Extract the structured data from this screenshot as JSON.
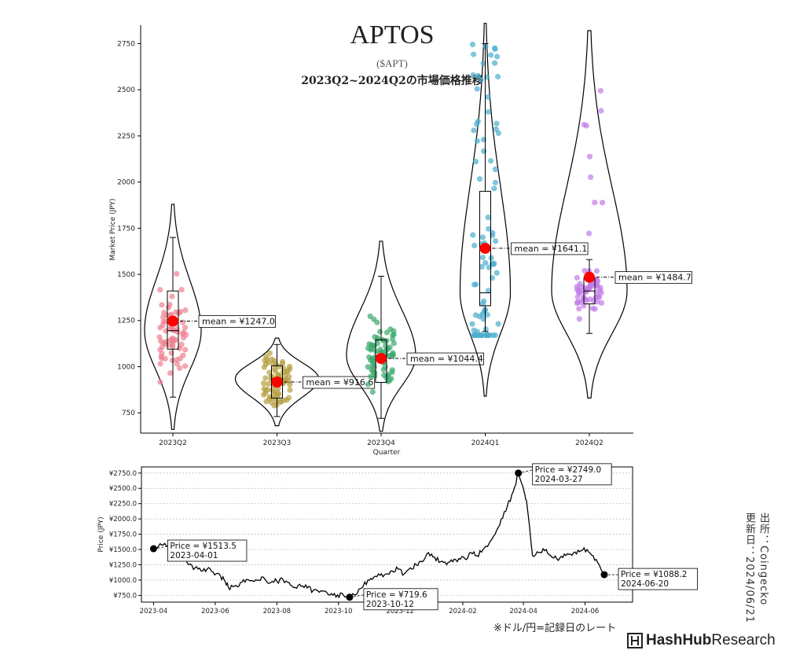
{
  "colors": {
    "violin_points": [
      "#f08090",
      "#b5a040",
      "#3aaa6e",
      "#4aaecf",
      "#c27be8"
    ],
    "mean_marker": "#ff0000",
    "line": "#000000"
  },
  "chart_data": [
    {
      "type": "violin",
      "title": "APTOS",
      "subtitle": "($APT)",
      "subtitle2": "2023Q2~2024Q2の市場価格推移",
      "xlabel": "Quarter",
      "ylabel": "Market Price (JPY)",
      "ylim": [
        640,
        2850
      ],
      "yticks": [
        750,
        1000,
        1250,
        1500,
        1750,
        2000,
        2250,
        2500,
        2750
      ],
      "categories": [
        "2023Q2",
        "2023Q3",
        "2023Q4",
        "2024Q1",
        "2024Q2"
      ],
      "violins": [
        {
          "category": "2023Q2",
          "min": 660,
          "max": 1880,
          "q1": 1095,
          "median": 1195,
          "q3": 1410,
          "whisker_low": 835,
          "whisker_high": 1700,
          "mean": 1247.0,
          "mean_label": "mean = ¥1247.0"
        },
        {
          "category": "2023Q3",
          "min": 680,
          "max": 1155,
          "q1": 830,
          "median": 935,
          "q3": 1005,
          "whisker_low": 730,
          "whisker_high": 1120,
          "mean": 916.6,
          "mean_label": "mean = ¥916.6"
        },
        {
          "category": "2023Q4",
          "min": 650,
          "max": 1680,
          "q1": 915,
          "median": 1060,
          "q3": 1145,
          "whisker_low": 720,
          "whisker_high": 1490,
          "mean": 1044.4,
          "mean_label": "mean = ¥1044.4"
        },
        {
          "category": "2024Q1",
          "min": 840,
          "max": 2860,
          "q1": 1330,
          "median": 1400,
          "q3": 1950,
          "whisker_low": 1190,
          "whisker_high": 2750,
          "mean": 1641.1,
          "mean_label": "mean = ¥1641.1"
        },
        {
          "category": "2024Q2",
          "min": 830,
          "max": 2820,
          "q1": 1340,
          "median": 1410,
          "q3": 1480,
          "whisker_low": 1180,
          "whisker_high": 1580,
          "mean": 1484.7,
          "mean_label": "mean = ¥1484.7"
        }
      ]
    },
    {
      "type": "line",
      "xlabel": "",
      "ylabel": "Price (JPY)",
      "ylim": [
        640,
        2850
      ],
      "yticks": [
        750,
        1000,
        1250,
        1500,
        1750,
        2000,
        2250,
        2500,
        2750
      ],
      "ytick_labels": [
        "¥750.0",
        "¥1000.0",
        "¥1250.0",
        "¥1500.0",
        "¥1750.0",
        "¥2000.0",
        "¥2250.0",
        "¥2500.0",
        "¥2750.0"
      ],
      "xlim": [
        "2023-03-20",
        "2024-07-18"
      ],
      "xticks": [
        "2023-04",
        "2023-06",
        "2023-08",
        "2023-10",
        "2023-12",
        "2024-02",
        "2024-04",
        "2024-06"
      ],
      "grid": "horizontal",
      "series": [
        {
          "x": [
            "2023-04-01",
            "2023-04-06",
            "2023-04-12",
            "2023-04-18",
            "2023-04-24",
            "2023-04-30",
            "2023-05-06",
            "2023-05-12",
            "2023-05-18",
            "2023-05-24",
            "2023-05-30",
            "2023-06-05",
            "2023-06-10",
            "2023-06-14",
            "2023-06-20",
            "2023-06-26",
            "2023-07-02",
            "2023-07-08",
            "2023-07-14",
            "2023-07-20",
            "2023-07-26",
            "2023-08-01",
            "2023-08-07",
            "2023-08-13",
            "2023-08-19",
            "2023-08-25",
            "2023-08-31",
            "2023-09-06",
            "2023-09-12",
            "2023-09-18",
            "2023-09-24",
            "2023-09-30",
            "2023-10-06",
            "2023-10-12",
            "2023-10-18",
            "2023-10-24",
            "2023-10-30",
            "2023-11-05",
            "2023-11-11",
            "2023-11-17",
            "2023-11-23",
            "2023-11-29",
            "2023-12-05",
            "2023-12-11",
            "2023-12-17",
            "2023-12-23",
            "2023-12-29",
            "2024-01-04",
            "2024-01-10",
            "2024-01-16",
            "2024-01-22",
            "2024-01-28",
            "2024-02-03",
            "2024-02-09",
            "2024-02-15",
            "2024-02-21",
            "2024-02-27",
            "2024-03-04",
            "2024-03-10",
            "2024-03-16",
            "2024-03-22",
            "2024-03-27",
            "2024-04-01",
            "2024-04-04",
            "2024-04-10",
            "2024-04-16",
            "2024-04-22",
            "2024-04-28",
            "2024-05-04",
            "2024-05-10",
            "2024-05-16",
            "2024-05-22",
            "2024-05-28",
            "2024-06-03",
            "2024-06-09",
            "2024-06-15",
            "2024-06-20"
          ],
          "y": [
            1513.5,
            1560,
            1600,
            1500,
            1540,
            1450,
            1250,
            1200,
            1150,
            1180,
            1130,
            1100,
            1000,
            880,
            900,
            960,
            1010,
            990,
            1000,
            1020,
            960,
            980,
            1010,
            960,
            880,
            900,
            870,
            830,
            800,
            820,
            780,
            760,
            750,
            719.6,
            760,
            870,
            1000,
            1050,
            1080,
            1100,
            1150,
            1180,
            1100,
            1200,
            1250,
            1300,
            1450,
            1380,
            1300,
            1250,
            1300,
            1350,
            1350,
            1450,
            1400,
            1500,
            1600,
            1750,
            2000,
            2200,
            2450,
            2749.0,
            2500,
            2300,
            1400,
            1450,
            1480,
            1400,
            1350,
            1370,
            1420,
            1460,
            1480,
            1500,
            1400,
            1250,
            1088.2
          ]
        }
      ],
      "annotations": [
        {
          "date": "2023-04-01",
          "price": 1513.5,
          "label": "Price = ¥1513.5",
          "date_label": "2023-04-01"
        },
        {
          "date": "2023-10-12",
          "price": 719.6,
          "label": "Price = ¥719.6",
          "date_label": "2023-10-12"
        },
        {
          "date": "2024-03-27",
          "price": 2749.0,
          "label": "Price = ¥2749.0",
          "date_label": "2024-03-27"
        },
        {
          "date": "2024-06-20",
          "price": 1088.2,
          "label": "Price = ¥1088.2",
          "date_label": "2024-06-20"
        }
      ]
    }
  ],
  "notes": {
    "rate": "※ドル/円=記録日のレート",
    "source": "出所：Coingecko",
    "updated": "更新日：2024/06/21",
    "brand_bold": "HashHub",
    "brand_rest": "Research"
  }
}
